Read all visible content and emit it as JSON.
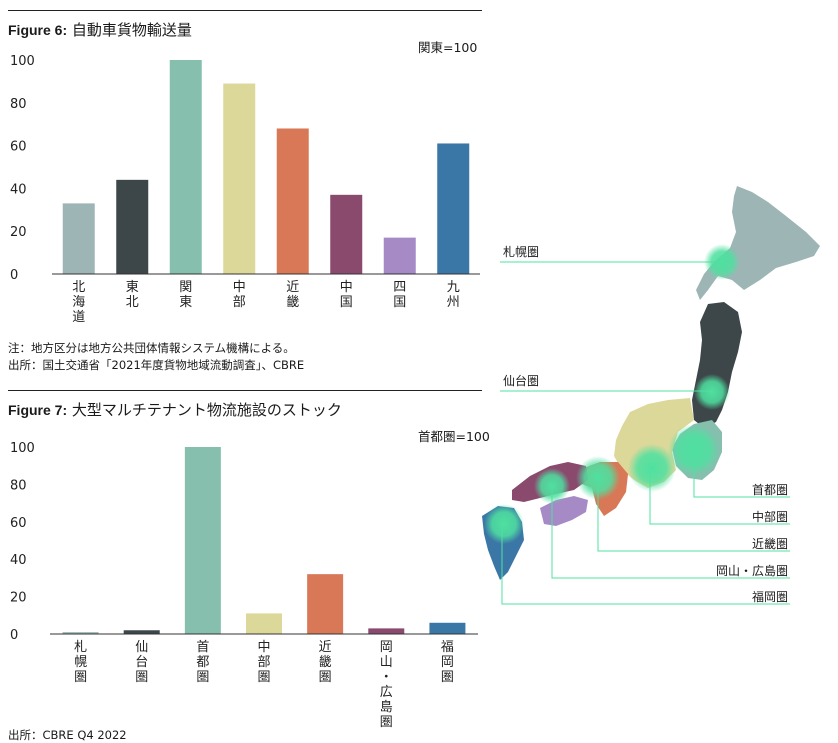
{
  "figure6": {
    "label": "Figure 6:",
    "title": "自動車貨物輸送量",
    "index_note": "関東=100",
    "note": "注：地方区分は地方公共団体情報システム機構による。",
    "source": "出所：国土交通省「2021年度貨物地域流動調査」、CBRE"
  },
  "figure7": {
    "label": "Figure 7:",
    "title": "大型マルチテナント物流施設のストック",
    "index_note": "首都圏=100",
    "source": "出所：CBRE Q4 2022"
  },
  "chart_data": [
    {
      "type": "bar",
      "title": "Figure 6: 自動車貨物輸送量",
      "categories": [
        "北海道",
        "東北",
        "関東",
        "中部",
        "近畿",
        "中国",
        "四国",
        "九州"
      ],
      "values": [
        33,
        44,
        100,
        89,
        68,
        37,
        17,
        61
      ],
      "colors": [
        "#9db5b5",
        "#3d4649",
        "#86bfae",
        "#dcd899",
        "#d87856",
        "#8a4a6e",
        "#a68ac6",
        "#3b77a6"
      ],
      "ylim": [
        0,
        100
      ],
      "yticks": [
        0,
        20,
        40,
        60,
        80,
        100
      ],
      "grid": false
    },
    {
      "type": "bar",
      "title": "Figure 7: 大型マルチテナント物流施設のストック",
      "categories": [
        "札幌圏",
        "仙台圏",
        "首都圏",
        "中部圏",
        "近畿圏",
        "岡山・広島圏",
        "福岡圏"
      ],
      "values": [
        1,
        2,
        100,
        11,
        32,
        3,
        6
      ],
      "colors": [
        "#9db5b5",
        "#3d4649",
        "#86bfae",
        "#dcd899",
        "#d87856",
        "#8a4a6e",
        "#3b77a6"
      ],
      "ylim": [
        0,
        100
      ],
      "yticks": [
        0,
        20,
        40,
        60,
        80,
        100
      ],
      "grid": false
    }
  ],
  "map": {
    "accent_color": "#4fe0a0",
    "labels": {
      "sapporo": "札幌圏",
      "sendai": "仙台圏",
      "shuto": "首都圏",
      "chubu": "中部圏",
      "kinki": "近畿圏",
      "okayama": "岡山・広島圏",
      "fukuoka": "福岡圏"
    }
  }
}
